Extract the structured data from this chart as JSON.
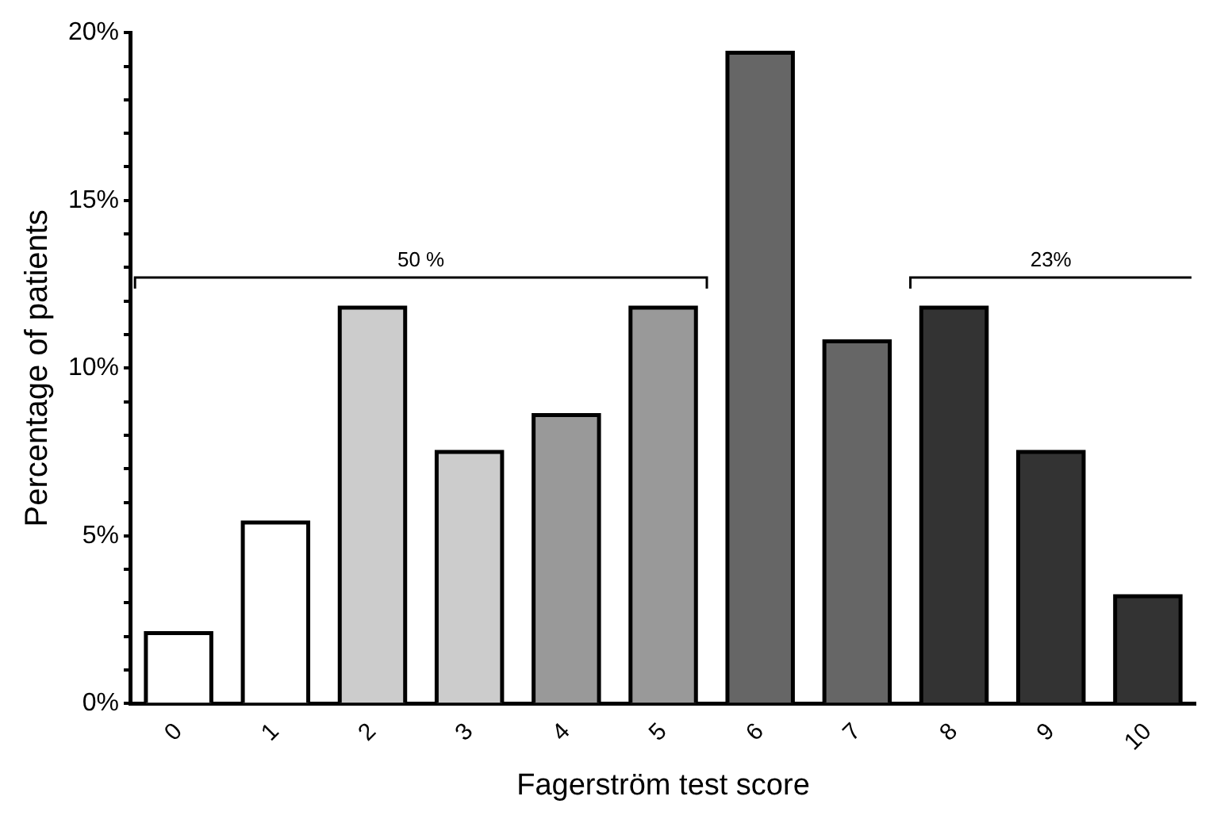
{
  "chart_data": {
    "type": "bar",
    "xlabel": "Fagerström test score",
    "ylabel": "Percentage of patients",
    "categories": [
      "0",
      "1",
      "2",
      "3",
      "4",
      "5",
      "6",
      "7",
      "8",
      "9",
      "10"
    ],
    "values": [
      2.1,
      5.4,
      11.8,
      7.5,
      8.6,
      11.8,
      19.4,
      10.8,
      11.8,
      7.5,
      3.2
    ],
    "colors": [
      "#ffffff",
      "#ffffff",
      "#cccccc",
      "#cccccc",
      "#999999",
      "#999999",
      "#666666",
      "#666666",
      "#333333",
      "#333333",
      "#333333"
    ],
    "ylim": [
      0,
      20
    ],
    "yticks": [
      {
        "value": 0,
        "label": "0%"
      },
      {
        "value": 1,
        "label": null
      },
      {
        "value": 2,
        "label": null
      },
      {
        "value": 3,
        "label": null
      },
      {
        "value": 4,
        "label": null
      },
      {
        "value": 5,
        "label": "5%"
      },
      {
        "value": 6,
        "label": null
      },
      {
        "value": 7,
        "label": null
      },
      {
        "value": 8,
        "label": null
      },
      {
        "value": 9,
        "label": null
      },
      {
        "value": 10,
        "label": "10%"
      },
      {
        "value": 11,
        "label": null
      },
      {
        "value": 12,
        "label": null
      },
      {
        "value": 13,
        "label": null
      },
      {
        "value": 14,
        "label": null
      },
      {
        "value": 15,
        "label": "15%"
      },
      {
        "value": 16,
        "label": null
      },
      {
        "value": 17,
        "label": null
      },
      {
        "value": 18,
        "label": null
      },
      {
        "value": 19,
        "label": null
      },
      {
        "value": 20,
        "label": "20%"
      }
    ],
    "annotations": [
      "50 %",
      "23%"
    ],
    "grid": false,
    "legend": false
  }
}
